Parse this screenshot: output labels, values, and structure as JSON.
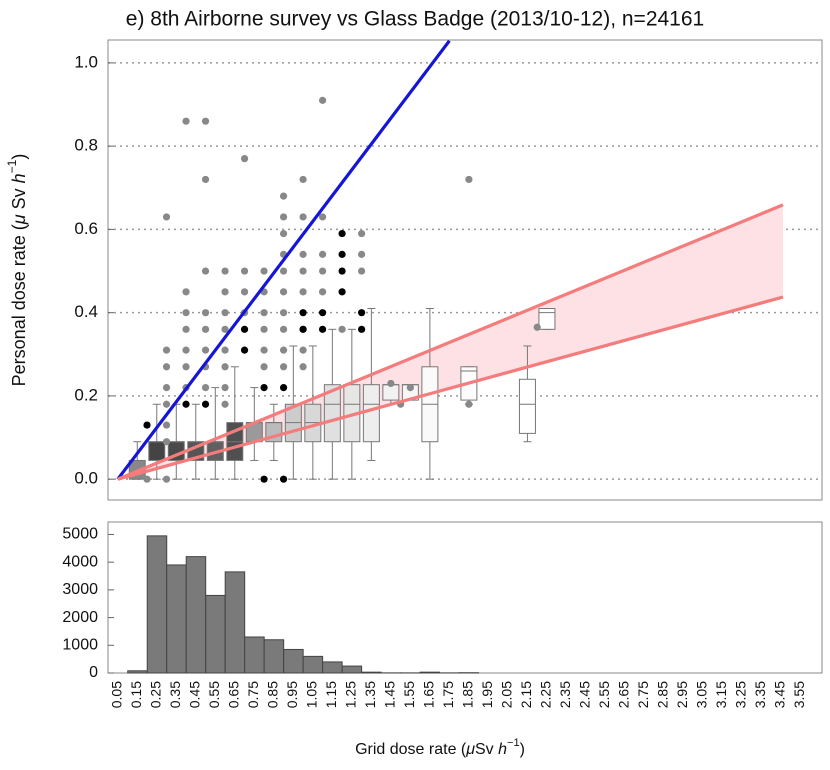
{
  "chart_data": [
    {
      "type": "box",
      "title": "e) 8th Airborne survey vs Glass Badge (2013/10-12), n=24161",
      "ylabel": [
        "Personal dose rate (",
        "μ",
        " Sv ",
        "h",
        "−1",
        ")"
      ],
      "xlim": [
        0,
        3.66
      ],
      "ylim": [
        -0.05,
        1.055
      ],
      "yticks": [
        {
          "value": 0,
          "label": "0.0"
        },
        0.2,
        0.4,
        0.6,
        0.8,
        {
          "value": 1,
          "label": "1.0"
        }
      ],
      "grid": true,
      "boxes": {
        "x": [
          0.15,
          0.25,
          0.35,
          0.45,
          0.55,
          0.65,
          0.75,
          0.85,
          0.95,
          1.05,
          1.15,
          1.25,
          1.35,
          1.45,
          1.55,
          1.65,
          1.85,
          2.15,
          2.25
        ],
        "min": [
          0,
          0,
          0,
          0,
          0,
          0,
          0.045,
          0.045,
          0,
          0,
          0,
          0,
          0.045,
          0.18,
          0.19,
          0,
          0.18,
          0.09,
          0.36
        ],
        "q1": [
          0,
          0.045,
          0.045,
          0.045,
          0.045,
          0.045,
          0.09,
          0.09,
          0.09,
          0.09,
          0.09,
          0.09,
          0.09,
          0.19,
          0.19,
          0.09,
          0.19,
          0.11,
          0.36
        ],
        "median": [
          0.045,
          0.09,
          0.09,
          0.09,
          0.09,
          0.09,
          0.136,
          0.136,
          0.136,
          0.136,
          0.18,
          0.18,
          0.18,
          0.227,
          0.227,
          0.18,
          0.26,
          0.18,
          0.4
        ],
        "q3": [
          0.045,
          0.09,
          0.09,
          0.09,
          0.09,
          0.136,
          0.136,
          0.136,
          0.18,
          0.18,
          0.227,
          0.227,
          0.227,
          0.227,
          0.227,
          0.27,
          0.27,
          0.24,
          0.41
        ],
        "max": [
          0.09,
          0.18,
          0.18,
          0.18,
          0.22,
          0.27,
          0.22,
          0.18,
          0.32,
          0.32,
          0.36,
          0.36,
          0.41,
          0.227,
          0.227,
          0.41,
          0.27,
          0.32,
          0.41
        ],
        "fill": [
          "#888888",
          "#444444",
          "#4a4a4a",
          "#555555",
          "#606060",
          "#505050",
          "#9a9a9a",
          "#bbbbbb",
          "#cccccc",
          "#d8d8d8",
          "#e0e0e0",
          "#e6e6e6",
          "#eeeeee",
          "#f2f2f2",
          "#f6f6f6",
          "#fafafa",
          "#fcfcfc",
          "#ffffff",
          "#ffffff"
        ]
      },
      "outliers": [
        {
          "color": "#888888",
          "x": [
            0.2,
            0.3,
            0.3,
            0.3,
            0.3,
            0.3,
            0.3,
            0.3,
            0.3,
            0.4,
            0.4,
            0.4,
            0.4,
            0.4,
            0.4,
            0.4,
            0.5,
            0.5,
            0.5,
            0.5,
            0.5,
            0.5,
            0.5,
            0.5,
            0.6,
            0.6,
            0.6,
            0.6,
            0.6,
            0.6,
            0.6,
            0.6,
            0.7,
            0.7,
            0.7,
            0.7,
            0.8,
            0.8,
            0.8,
            0.8,
            0.8,
            0.8,
            0.9,
            0.9,
            0.9,
            0.9,
            0.9,
            0.9,
            0.9,
            0.9,
            0.9,
            0.9,
            1.0,
            1.0,
            1.0,
            1.0,
            1.0,
            1.0,
            1.0,
            1.0,
            1.1,
            1.1,
            1.1,
            1.1,
            1.1,
            1.2,
            1.3,
            1.3,
            1.3,
            1.45,
            1.55,
            1.5,
            1.85,
            1.85,
            2.2
          ],
          "values": [
            0,
            0,
            0.09,
            0.13,
            0.18,
            0.22,
            0.27,
            0.31,
            0.63,
            0.22,
            0.27,
            0.31,
            0.36,
            0.4,
            0.45,
            0.86,
            0.22,
            0.27,
            0.31,
            0.36,
            0.4,
            0.5,
            0.72,
            0.86,
            0.18,
            0.22,
            0.27,
            0.31,
            0.36,
            0.4,
            0.45,
            0.5,
            0.4,
            0.45,
            0.5,
            0.77,
            0.27,
            0.31,
            0.36,
            0.4,
            0.45,
            0.5,
            0.27,
            0.31,
            0.36,
            0.4,
            0.45,
            0.5,
            0.54,
            0.59,
            0.63,
            0.68,
            0.27,
            0.31,
            0.36,
            0.45,
            0.5,
            0.54,
            0.63,
            0.72,
            0.45,
            0.5,
            0.54,
            0.63,
            0.91,
            0.36,
            0.5,
            0.54,
            0.59,
            0.23,
            0.22,
            0.18,
            0.18,
            0.72,
            0.365
          ]
        },
        {
          "color": "#000000",
          "x": [
            0.2,
            0.4,
            0.5,
            0.7,
            0.7,
            0.8,
            0.8,
            0.9,
            0.9,
            1.0,
            1.0,
            1.1,
            1.1,
            1.2,
            1.2,
            1.2,
            1.2,
            1.3,
            1.3
          ],
          "values": [
            0.13,
            0.18,
            0.18,
            0.31,
            0.36,
            0,
            0.22,
            0,
            0.22,
            0.36,
            0.4,
            0.36,
            0.4,
            0.45,
            0.5,
            0.54,
            0.59,
            0.36,
            0.4
          ]
        }
      ],
      "lines": [
        {
          "color": "#1515d8",
          "x": [
            0.05,
            1.75
          ],
          "values": [
            0,
            1.053
          ]
        },
        {
          "color": "#f47c7c",
          "x": [
            0.05,
            3.46
          ],
          "values": [
            0,
            0.659
          ]
        },
        {
          "color": "#f47c7c",
          "x": [
            0.05,
            3.46
          ],
          "values": [
            0,
            0.4375
          ]
        }
      ],
      "band_color": "#fde1e5"
    },
    {
      "type": "bar",
      "xlabel": [
        "Grid dose rate (",
        "μ",
        "Sv ",
        "h",
        "−1",
        ")"
      ],
      "categories": [
        "0.05",
        "0.15",
        "0.25",
        "0.35",
        "0.45",
        "0.55",
        "0.65",
        "0.75",
        "0.85",
        "0.95",
        "1.05",
        "1.15",
        "1.25",
        "1.35",
        "1.45",
        "1.55",
        "1.65",
        "1.75",
        "1.85",
        "1.95",
        "2.05",
        "2.15",
        "2.25",
        "2.35",
        "2.45",
        "2.55",
        "2.65",
        "2.75",
        "2.85",
        "2.95",
        "3.05",
        "3.15",
        "3.25",
        "3.35",
        "3.45",
        "3.55"
      ],
      "values": [
        0,
        80,
        4950,
        3900,
        4200,
        2800,
        3650,
        1300,
        1200,
        850,
        600,
        400,
        250,
        30,
        5,
        5,
        30,
        5,
        10,
        0,
        0,
        0,
        0,
        0,
        0,
        0,
        0,
        0,
        0,
        0,
        0,
        0,
        0,
        0,
        0,
        0
      ],
      "color": "#7a7a7a",
      "ylim": [
        0,
        5450
      ],
      "yticks": [
        0,
        1000,
        2000,
        3000,
        4000,
        5000
      ]
    }
  ]
}
